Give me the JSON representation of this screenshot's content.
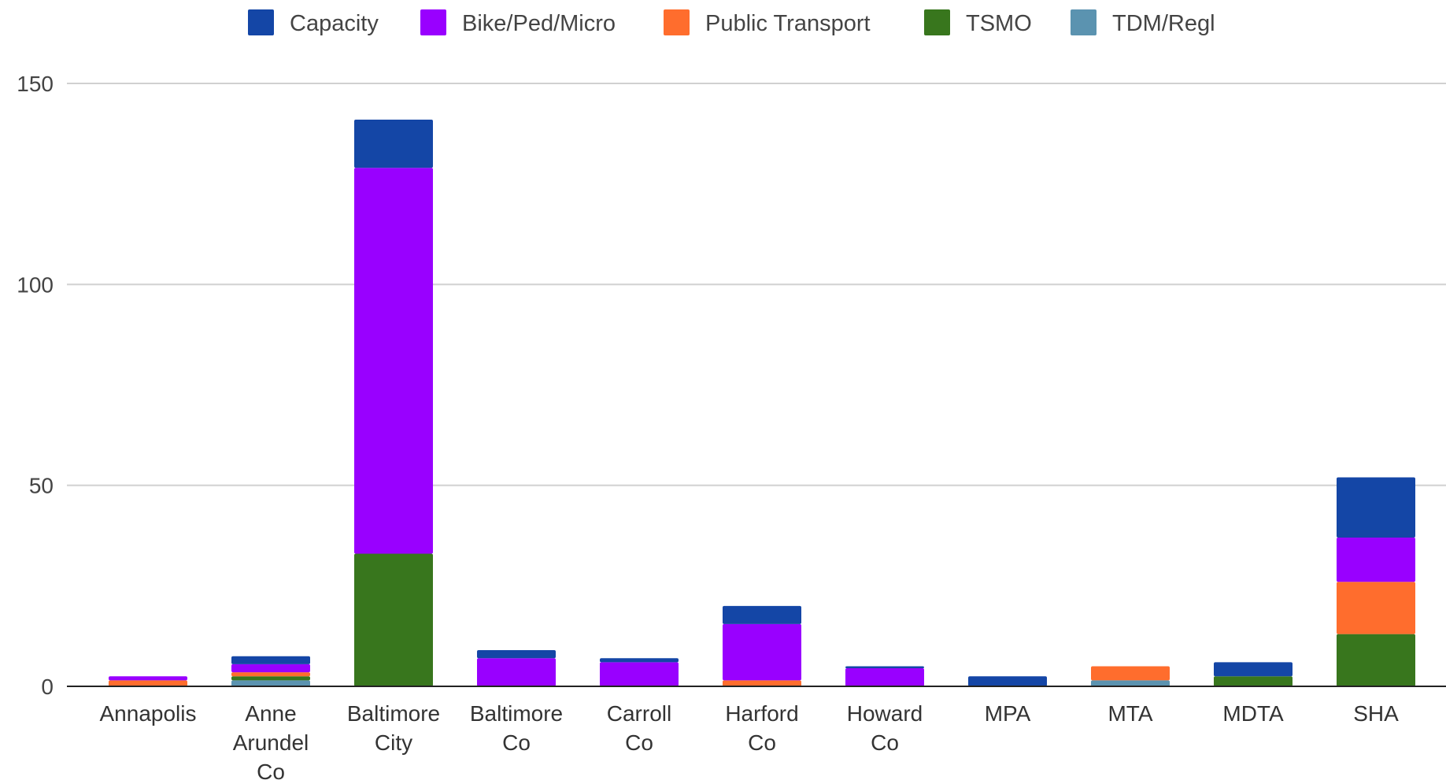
{
  "chart_data": {
    "type": "bar",
    "stacked": true,
    "categories": [
      "Annapolis",
      "Anne Arundel Co",
      "Baltimore City",
      "Baltimore Co",
      "Carroll Co",
      "Harford Co",
      "Howard Co",
      "MPA",
      "MTA",
      "MDTA",
      "SHA"
    ],
    "category_lines": [
      [
        "Annapolis"
      ],
      [
        "Anne",
        "Arundel",
        "Co"
      ],
      [
        "Baltimore",
        "City"
      ],
      [
        "Baltimore",
        "Co"
      ],
      [
        "Carroll",
        "Co"
      ],
      [
        "Harford",
        "Co"
      ],
      [
        "Howard",
        "Co"
      ],
      [
        "MPA"
      ],
      [
        "MTA"
      ],
      [
        "MDTA"
      ],
      [
        "SHA"
      ]
    ],
    "series": [
      {
        "name": "TDM/Regl",
        "color": "#5b93b0",
        "values": [
          0,
          1.5,
          0,
          0,
          0,
          0,
          0,
          0,
          1.5,
          0,
          0
        ]
      },
      {
        "name": "TSMO",
        "color": "#38761d",
        "values": [
          0,
          1,
          33,
          0,
          0,
          0,
          0,
          0,
          0,
          2.5,
          13
        ]
      },
      {
        "name": "Public Transport",
        "color": "#ff6d2d",
        "values": [
          1.5,
          1,
          0,
          0,
          0,
          1.5,
          0,
          0,
          3.5,
          0,
          13
        ]
      },
      {
        "name": "Bike/Ped/Micro",
        "color": "#9900ff",
        "values": [
          1,
          2,
          96,
          7,
          6,
          14,
          4.5,
          0,
          0,
          0,
          11
        ]
      },
      {
        "name": "Capacity",
        "color": "#1446a6",
        "values": [
          0,
          2,
          12,
          2,
          1,
          4.5,
          0.5,
          2.5,
          0,
          3.5,
          15
        ]
      }
    ],
    "legend_order": [
      "Capacity",
      "Bike/Ped/Micro",
      "Public Transport",
      "TSMO",
      "TDM/Regl"
    ],
    "legend_position": "top",
    "ylim": [
      0,
      150
    ],
    "yticks": [
      0,
      50,
      100,
      150
    ],
    "grid": true,
    "title": "",
    "xlabel": "",
    "ylabel": ""
  }
}
